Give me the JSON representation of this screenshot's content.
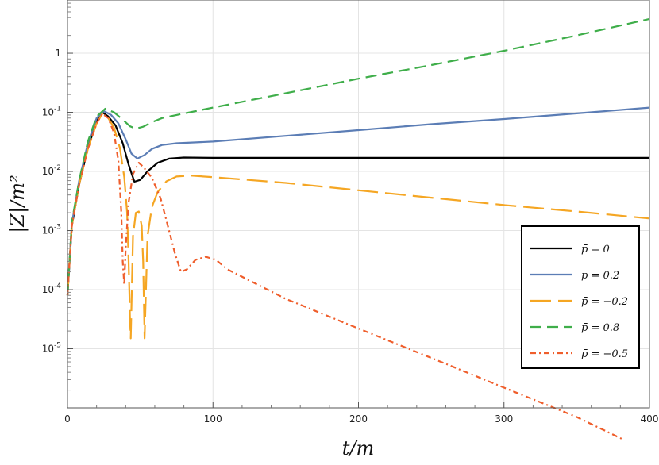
{
  "chart_data": {
    "type": "line",
    "title": "",
    "xlabel": "t/m",
    "ylabel": "|Z|/m²",
    "xlim": [
      0,
      400
    ],
    "ylim_log10": [
      -6,
      0.9
    ],
    "yscale": "log",
    "grid": true,
    "legend_position": "bottom-right",
    "x_ticks": [
      {
        "value": 0,
        "label": "0"
      },
      {
        "value": 100,
        "label": "100"
      },
      {
        "value": 200,
        "label": "200"
      },
      {
        "value": 300,
        "label": "300"
      },
      {
        "value": 400,
        "label": "400"
      }
    ],
    "y_ticks": [
      {
        "value": 1,
        "label": "1",
        "exp": ""
      },
      {
        "value": 0.1,
        "label": "10",
        "exp": "-1"
      },
      {
        "value": 0.01,
        "label": "10",
        "exp": "-2"
      },
      {
        "value": 0.001,
        "label": "10",
        "exp": "-3"
      },
      {
        "value": 0.0001,
        "label": "10",
        "exp": "-4"
      },
      {
        "value": 1e-05,
        "label": "10",
        "exp": "-5"
      }
    ],
    "series": [
      {
        "name": "p̄ = 0",
        "color": "#000000",
        "dash": "",
        "points": [
          [
            0,
            8e-05
          ],
          [
            3,
            0.0012
          ],
          [
            8,
            0.006
          ],
          [
            14,
            0.025
          ],
          [
            20,
            0.07
          ],
          [
            24,
            0.1
          ],
          [
            28,
            0.085
          ],
          [
            33,
            0.06
          ],
          [
            38,
            0.03
          ],
          [
            42,
            0.013
          ],
          [
            46,
            0.0067
          ],
          [
            50,
            0.0072
          ],
          [
            55,
            0.01
          ],
          [
            62,
            0.014
          ],
          [
            70,
            0.0165
          ],
          [
            80,
            0.0172
          ],
          [
            100,
            0.017
          ],
          [
            200,
            0.017
          ],
          [
            300,
            0.017
          ],
          [
            400,
            0.017
          ]
        ]
      },
      {
        "name": "p̄ = 0.2",
        "color": "#5b7db5",
        "dash": "",
        "points": [
          [
            0,
            8e-05
          ],
          [
            3,
            0.0013
          ],
          [
            8,
            0.007
          ],
          [
            14,
            0.03
          ],
          [
            20,
            0.08
          ],
          [
            25,
            0.105
          ],
          [
            30,
            0.09
          ],
          [
            35,
            0.065
          ],
          [
            40,
            0.035
          ],
          [
            44,
            0.02
          ],
          [
            48,
            0.0165
          ],
          [
            53,
            0.019
          ],
          [
            58,
            0.024
          ],
          [
            65,
            0.028
          ],
          [
            75,
            0.03
          ],
          [
            100,
            0.032
          ],
          [
            150,
            0.04
          ],
          [
            200,
            0.05
          ],
          [
            250,
            0.063
          ],
          [
            300,
            0.077
          ],
          [
            350,
            0.096
          ],
          [
            400,
            0.12
          ]
        ]
      },
      {
        "name": "p̄ = −0.2",
        "color": "#f5a623",
        "dash": "26,9",
        "points": [
          [
            0,
            8e-05
          ],
          [
            3,
            0.0012
          ],
          [
            8,
            0.006
          ],
          [
            14,
            0.024
          ],
          [
            20,
            0.065
          ],
          [
            24,
            0.095
          ],
          [
            28,
            0.08
          ],
          [
            32,
            0.055
          ],
          [
            36,
            0.025
          ],
          [
            39,
            0.008
          ],
          [
            41,
            0.002
          ],
          [
            42,
            0.0003
          ],
          [
            43,
            3e-05
          ],
          [
            43.5,
            1.5e-05
          ],
          [
            45,
            0.0008
          ],
          [
            47,
            0.002
          ],
          [
            49,
            0.0021
          ],
          [
            51,
            0.0012
          ],
          [
            52,
            0.0003
          ],
          [
            53,
            1.5e-05
          ],
          [
            55,
            0.0008
          ],
          [
            58,
            0.0025
          ],
          [
            62,
            0.0045
          ],
          [
            68,
            0.0068
          ],
          [
            75,
            0.0082
          ],
          [
            85,
            0.0085
          ],
          [
            100,
            0.008
          ],
          [
            150,
            0.0064
          ],
          [
            200,
            0.0048
          ],
          [
            250,
            0.0036
          ],
          [
            300,
            0.0027
          ],
          [
            350,
            0.0021
          ],
          [
            400,
            0.0016
          ]
        ]
      },
      {
        "name": "p̄ = 0.8",
        "color": "#3fae4a",
        "dash": "14,7",
        "points": [
          [
            0,
            8e-05
          ],
          [
            3,
            0.0014
          ],
          [
            8,
            0.007
          ],
          [
            14,
            0.032
          ],
          [
            20,
            0.085
          ],
          [
            26,
            0.115
          ],
          [
            32,
            0.1
          ],
          [
            38,
            0.075
          ],
          [
            43,
            0.058
          ],
          [
            47,
            0.053
          ],
          [
            52,
            0.057
          ],
          [
            58,
            0.068
          ],
          [
            65,
            0.08
          ],
          [
            75,
            0.09
          ],
          [
            100,
            0.12
          ],
          [
            150,
            0.21
          ],
          [
            200,
            0.37
          ],
          [
            250,
            0.63
          ],
          [
            300,
            1.1
          ],
          [
            350,
            2.0
          ],
          [
            400,
            3.8
          ]
        ]
      },
      {
        "name": "p̄ = −0.5",
        "color": "#ef5e2c",
        "dash": "7,4,2,4",
        "points": [
          [
            0,
            8e-05
          ],
          [
            3,
            0.0012
          ],
          [
            8,
            0.006
          ],
          [
            14,
            0.024
          ],
          [
            20,
            0.065
          ],
          [
            24,
            0.095
          ],
          [
            28,
            0.08
          ],
          [
            32,
            0.045
          ],
          [
            35,
            0.015
          ],
          [
            37,
            0.002
          ],
          [
            38,
            0.0003
          ],
          [
            39,
            0.00012
          ],
          [
            40,
            0.0005
          ],
          [
            42,
            0.003
          ],
          [
            45,
            0.009
          ],
          [
            49,
            0.014
          ],
          [
            52,
            0.012
          ],
          [
            58,
            0.0078
          ],
          [
            64,
            0.0035
          ],
          [
            69,
            0.0012
          ],
          [
            74,
            0.0004
          ],
          [
            78,
            0.0002
          ],
          [
            82,
            0.00022
          ],
          [
            88,
            0.00032
          ],
          [
            95,
            0.00036
          ],
          [
            102,
            0.00032
          ],
          [
            110,
            0.00022
          ],
          [
            150,
            7e-05
          ],
          [
            200,
            2.2e-05
          ],
          [
            250,
            7e-06
          ],
          [
            300,
            2.2e-06
          ],
          [
            350,
            7e-07
          ],
          [
            381,
            3e-07
          ]
        ]
      }
    ]
  }
}
